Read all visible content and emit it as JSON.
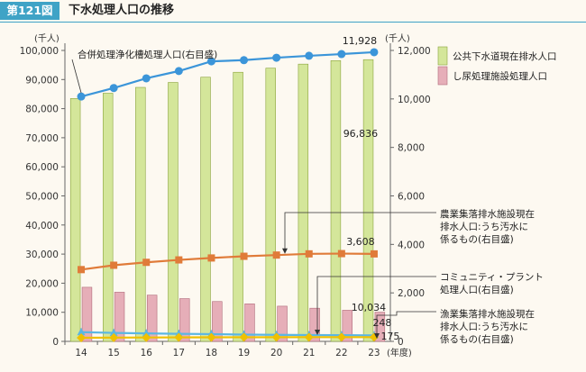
{
  "header": {
    "figure_number": "第121図",
    "title": "下水処理人口の推移"
  },
  "colors": {
    "accent": "#3fa3c6",
    "sewer_bar": "#d4e69a",
    "sewer_bar_edge": "#8aa33c",
    "night_soil_bar": "#e6aeb8",
    "night_soil_bar_edge": "#b06b7a",
    "septic_line": "#3b95d9",
    "farm_line": "#e07b39",
    "community_line": "#5bb7e3",
    "fishing_line": "#f0c000"
  },
  "chart_data": {
    "type": "bar",
    "x": [
      14,
      15,
      16,
      17,
      18,
      19,
      20,
      21,
      22,
      23
    ],
    "x_tick_labels": [
      "14",
      "15",
      "16",
      "17",
      "18",
      "19",
      "20",
      "21",
      "22",
      "23"
    ],
    "xlabel": "(年度)",
    "left_axis": {
      "unit": "(千人)",
      "ylim": [
        0,
        100000
      ],
      "ticks": [
        0,
        10000,
        20000,
        30000,
        40000,
        50000,
        60000,
        70000,
        80000,
        90000,
        100000
      ],
      "tick_labels": [
        "0",
        "10,000",
        "20,000",
        "30,000",
        "40,000",
        "50,000",
        "60,000",
        "70,000",
        "80,000",
        "90,000",
        "100,000"
      ]
    },
    "right_axis": {
      "unit": "(千人)",
      "ylim": [
        0,
        12000
      ],
      "ticks": [
        0,
        2000,
        4000,
        6000,
        8000,
        10000,
        12000
      ],
      "tick_labels": [
        "0",
        "2,000",
        "4,000",
        "6,000",
        "8,000",
        "10,000",
        "12,000"
      ]
    },
    "series": [
      {
        "name": "公共下水道現在排水人口",
        "kind": "bar",
        "axis": "left",
        "color": "#d4e69a",
        "values": [
          83500,
          85300,
          87300,
          89000,
          90800,
          92500,
          93900,
          95300,
          96500,
          96836
        ],
        "end_label": "96,836"
      },
      {
        "name": "し尿処理施設処理人口",
        "kind": "bar",
        "axis": "left",
        "color": "#e6aeb8",
        "values": [
          18600,
          16900,
          15900,
          14700,
          13700,
          12900,
          12100,
          11400,
          10700,
          10034
        ],
        "end_label": "10,034"
      },
      {
        "name": "合併処理浄化槽処理人口(右目盛)",
        "kind": "line",
        "axis": "right",
        "color": "#3b95d9",
        "marker": "circle",
        "values": [
          10100,
          10450,
          10850,
          11150,
          11550,
          11600,
          11700,
          11780,
          11850,
          11928
        ],
        "end_label": "11,928"
      },
      {
        "name": "農業集落排水施設現在排水人口:うち汚水に係るもの(右目盛)",
        "kind": "line",
        "axis": "right",
        "color": "#e07b39",
        "marker": "square",
        "values": [
          2960,
          3140,
          3260,
          3360,
          3440,
          3510,
          3560,
          3610,
          3620,
          3608
        ],
        "end_label": "3,608"
      },
      {
        "name": "コミュニティ・プラント処理人口(右目盛)",
        "kind": "line",
        "axis": "right",
        "color": "#5bb7e3",
        "marker": "triangle",
        "values": [
          380,
          350,
          330,
          310,
          300,
          280,
          270,
          260,
          255,
          248
        ],
        "end_label": "248"
      },
      {
        "name": "漁業集落排水施設現在排水人口:うち汚水に係るもの(右目盛)",
        "kind": "line",
        "axis": "right",
        "color": "#f0c000",
        "marker": "diamond",
        "values": [
          150,
          155,
          160,
          165,
          168,
          170,
          172,
          174,
          175,
          175
        ],
        "end_label": "175"
      }
    ],
    "legend": {
      "placement": "right",
      "items": [
        "公共下水道現在排水人口",
        "し尿処理施設処理人口"
      ]
    },
    "annotations": [
      {
        "text": "合併処理浄化槽処理人口(右目盛)"
      },
      {
        "lines": [
          "農業集落排水施設現在",
          "排水人口:うち汚水に",
          "係るもの(右目盛)"
        ]
      },
      {
        "lines": [
          "コミュニティ・プラント",
          "処理人口(右目盛)"
        ]
      },
      {
        "lines": [
          "漁業集落排水施設現在",
          "排水人口:うち汚水に",
          "係るもの(右目盛)"
        ]
      }
    ],
    "grid": false
  }
}
